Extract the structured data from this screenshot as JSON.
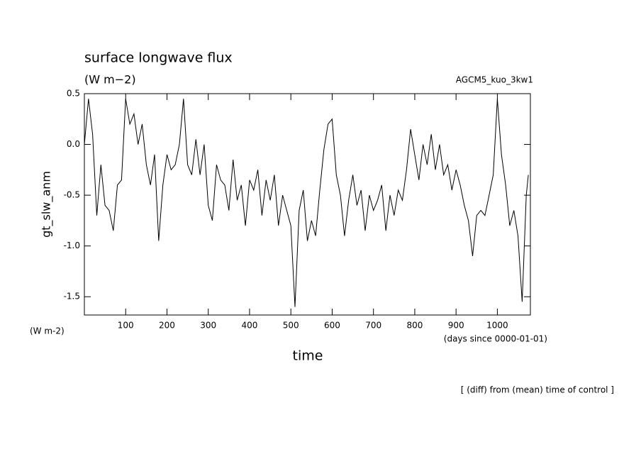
{
  "chart_data": {
    "type": "line",
    "title": "surface longwave flux",
    "units": "(W m−2)",
    "experiment": "AGCM5_kuo_3kw1",
    "y_label": "gt_slw_anm",
    "y_units": "(W m-2)",
    "x_units": "(days since 0000-01-01)",
    "x_label": "time",
    "footnote": "[ (diff) from (mean) time of control ]",
    "color": "#000000",
    "xlim": [
      0,
      1080
    ],
    "ylim": [
      -1.68,
      0.5
    ],
    "xticks": [
      100,
      200,
      300,
      400,
      500,
      600,
      700,
      800,
      900,
      1000
    ],
    "yticks": [
      0.5,
      {
        "value": 0,
        "label": "0.0"
      },
      -0.5,
      {
        "value": -1,
        "label": "-1.0"
      },
      -1.5
    ],
    "x": [
      0,
      10,
      20,
      30,
      40,
      50,
      60,
      70,
      80,
      90,
      100,
      110,
      120,
      130,
      140,
      150,
      160,
      170,
      180,
      190,
      200,
      210,
      220,
      230,
      240,
      250,
      260,
      270,
      280,
      290,
      300,
      310,
      320,
      330,
      340,
      350,
      360,
      370,
      380,
      390,
      400,
      410,
      420,
      430,
      440,
      450,
      460,
      470,
      480,
      490,
      500,
      510,
      520,
      530,
      540,
      550,
      560,
      570,
      580,
      590,
      600,
      610,
      620,
      630,
      640,
      650,
      660,
      670,
      680,
      690,
      700,
      710,
      720,
      730,
      740,
      750,
      760,
      770,
      780,
      790,
      800,
      810,
      820,
      830,
      840,
      850,
      860,
      870,
      880,
      890,
      900,
      910,
      920,
      930,
      940,
      950,
      960,
      970,
      980,
      990,
      1000,
      1010,
      1020,
      1030,
      1040,
      1050,
      1060,
      1070,
      1075
    ],
    "values": [
      0.0,
      0.45,
      0.1,
      -0.7,
      -0.2,
      -0.6,
      -0.65,
      -0.85,
      -0.4,
      -0.35,
      0.45,
      0.2,
      0.3,
      0.0,
      0.2,
      -0.2,
      -0.4,
      -0.1,
      -0.95,
      -0.4,
      -0.1,
      -0.25,
      -0.2,
      0.0,
      0.45,
      -0.2,
      -0.3,
      0.05,
      -0.3,
      0.0,
      -0.6,
      -0.75,
      -0.2,
      -0.35,
      -0.4,
      -0.65,
      -0.15,
      -0.55,
      -0.4,
      -0.8,
      -0.35,
      -0.45,
      -0.25,
      -0.7,
      -0.35,
      -0.55,
      -0.3,
      -0.8,
      -0.5,
      -0.65,
      -0.8,
      -1.6,
      -0.65,
      -0.45,
      -0.95,
      -0.75,
      -0.9,
      -0.45,
      -0.05,
      0.2,
      0.25,
      -0.3,
      -0.5,
      -0.9,
      -0.55,
      -0.3,
      -0.6,
      -0.45,
      -0.85,
      -0.5,
      -0.65,
      -0.55,
      -0.4,
      -0.85,
      -0.5,
      -0.7,
      -0.45,
      -0.55,
      -0.25,
      0.15,
      -0.1,
      -0.35,
      0.0,
      -0.2,
      0.1,
      -0.25,
      0.0,
      -0.3,
      -0.2,
      -0.45,
      -0.25,
      -0.4,
      -0.6,
      -0.75,
      -1.1,
      -0.7,
      -0.65,
      -0.7,
      -0.5,
      -0.3,
      0.45,
      -0.1,
      -0.4,
      -0.8,
      -0.65,
      -0.9,
      -1.55,
      -0.5,
      -0.3
    ]
  }
}
